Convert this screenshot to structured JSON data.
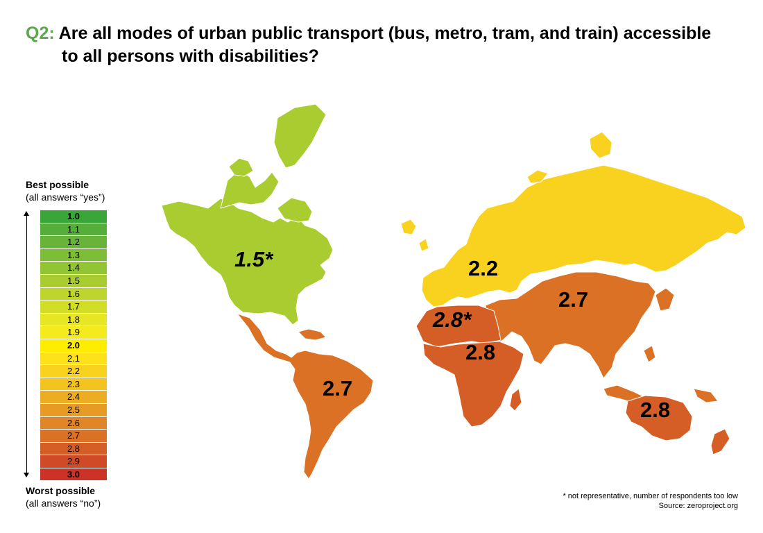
{
  "title": {
    "prefix": "Q2:",
    "line1": "Are all modes of urban public transport (bus, metro, tram, and train) accessible",
    "line2": "to all persons with disabilities?"
  },
  "legend": {
    "best_bold": "Best possible",
    "best_sub": "(all answers “yes”)",
    "worst_bold": "Worst possible",
    "worst_sub": "(all answers “no”)",
    "scale": [
      {
        "label": "1.0",
        "color": "#3aa63a",
        "bold": true
      },
      {
        "label": "1.1",
        "color": "#55ad3a",
        "bold": false
      },
      {
        "label": "1.2",
        "color": "#68b43a",
        "bold": false
      },
      {
        "label": "1.3",
        "color": "#7ebd38",
        "bold": false
      },
      {
        "label": "1.4",
        "color": "#93c434",
        "bold": false
      },
      {
        "label": "1.5",
        "color": "#a9cc30",
        "bold": false
      },
      {
        "label": "1.6",
        "color": "#bdd52c",
        "bold": false
      },
      {
        "label": "1.7",
        "color": "#d2dd27",
        "bold": false
      },
      {
        "label": "1.8",
        "color": "#e7e624",
        "bold": false
      },
      {
        "label": "1.9",
        "color": "#f4eb1e",
        "bold": false
      },
      {
        "label": "2.0",
        "color": "#ffed00",
        "bold": true
      },
      {
        "label": "2.1",
        "color": "#fde11a",
        "bold": false
      },
      {
        "label": "2.2",
        "color": "#f8d21e",
        "bold": false
      },
      {
        "label": "2.3",
        "color": "#f3c320",
        "bold": false
      },
      {
        "label": "2.4",
        "color": "#ecad22",
        "bold": false
      },
      {
        "label": "2.5",
        "color": "#e59b24",
        "bold": false
      },
      {
        "label": "2.6",
        "color": "#e08626",
        "bold": false
      },
      {
        "label": "2.7",
        "color": "#da7125",
        "bold": false
      },
      {
        "label": "2.8",
        "color": "#d55e27",
        "bold": false
      },
      {
        "label": "2.9",
        "color": "#d04a28",
        "bold": false
      },
      {
        "label": "3.0",
        "color": "#cc3326",
        "bold": true
      }
    ]
  },
  "regions": [
    {
      "id": "north-america",
      "value": "1.5*",
      "fill": "#a9cc30"
    },
    {
      "id": "latin-america",
      "value": "2.7",
      "fill": "#da7125"
    },
    {
      "id": "europe-russia",
      "value": "2.2",
      "fill": "#f8d21e"
    },
    {
      "id": "north-africa",
      "value": "2.8*",
      "fill": "#d55e27"
    },
    {
      "id": "sub-saharan-africa",
      "value": "2.8",
      "fill": "#d55e27"
    },
    {
      "id": "asia",
      "value": "2.7",
      "fill": "#da7125"
    },
    {
      "id": "oceania",
      "value": "2.8",
      "fill": "#d55e27"
    }
  ],
  "footnote": "* not representative, number of respondents too low",
  "source": "Source: zeroproject.org"
}
